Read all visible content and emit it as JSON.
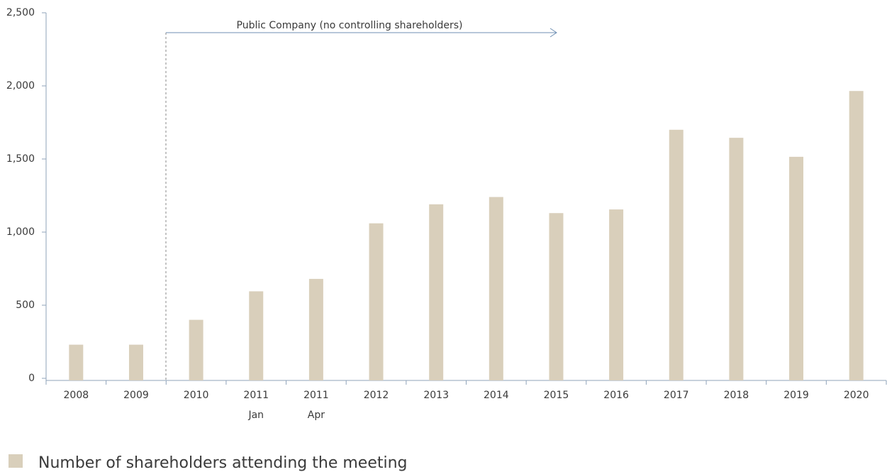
{
  "chart_data": {
    "type": "bar",
    "categories": [
      "2008",
      "2009",
      "2010",
      "2011",
      "2011",
      "2012",
      "2013",
      "2014",
      "2015",
      "2016",
      "2017",
      "2018",
      "2019",
      "2020"
    ],
    "category_sublabels": [
      null,
      null,
      null,
      "Jan",
      "Apr",
      null,
      null,
      null,
      null,
      null,
      null,
      null,
      null,
      null
    ],
    "series": [
      {
        "name": "Number of shareholders attending the meeting",
        "color": "#d9cfbb",
        "values": [
          230,
          230,
          400,
          595,
          680,
          1060,
          1190,
          1240,
          1130,
          1155,
          1700,
          1645,
          1515,
          1965
        ]
      }
    ],
    "ylim": [
      0,
      2500
    ],
    "yticks": [
      0,
      500,
      {
        "value": 1000,
        "label": "1,000"
      },
      {
        "value": 1500,
        "label": "1,500"
      },
      {
        "value": 2000,
        "label": "2,000"
      },
      {
        "value": 2500,
        "label": "2,500"
      }
    ],
    "annotation": "Public Company (no controlling shareholders)",
    "legend": "bottom-left"
  }
}
